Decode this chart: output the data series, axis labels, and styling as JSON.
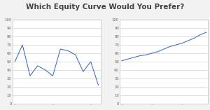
{
  "title": "Which Equity Curve Would You Prefer?",
  "title_fontsize": 7.5,
  "title_color": "#444444",
  "line_color": "#4472C4",
  "background_color": "#f2f2f2",
  "plot_bg_color": "#ffffff",
  "ylim": [
    0,
    100
  ],
  "yticks": [
    0,
    10,
    20,
    30,
    40,
    50,
    60,
    70,
    80,
    90,
    100
  ],
  "chart1_y": [
    50,
    70,
    33,
    45,
    40,
    33,
    65,
    63,
    58,
    38,
    50,
    22
  ],
  "chart2_y": [
    51,
    53,
    55,
    57,
    58,
    60,
    62,
    65,
    68,
    70,
    72,
    75,
    78,
    82,
    85
  ],
  "grid_color": "#c8c8c8",
  "tick_fontsize": 3.8,
  "line_width": 0.8
}
